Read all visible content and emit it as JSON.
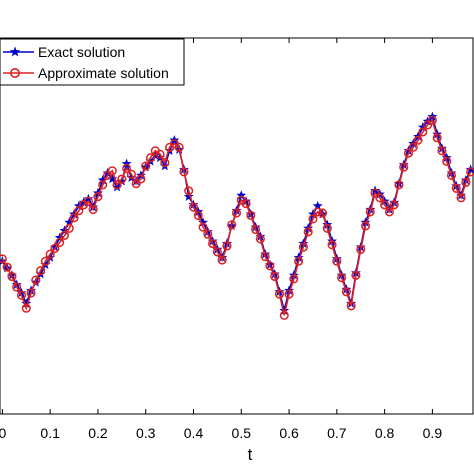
{
  "chart_data": {
    "type": "line",
    "xlabel": "t",
    "ylabel": "",
    "title": "",
    "xlim": [
      -0.005,
      0.985
    ],
    "ylim": [
      -1.0,
      2.2
    ],
    "xticks": [
      0.0,
      0.1,
      0.2,
      0.3,
      0.4,
      0.5,
      0.6,
      0.7,
      0.8,
      0.9
    ],
    "xtick_labels": [
      "0",
      "0.1",
      "0.2",
      "0.3",
      "0.4",
      "0.5",
      "0.6",
      "0.7",
      "0.8",
      "0.9"
    ],
    "grid": false,
    "legend_position": "top-left",
    "x": [
      0.0,
      0.01,
      0.02,
      0.03,
      0.04,
      0.05,
      0.06,
      0.07,
      0.08,
      0.09,
      0.1,
      0.11,
      0.12,
      0.13,
      0.14,
      0.15,
      0.16,
      0.17,
      0.18,
      0.19,
      0.2,
      0.21,
      0.22,
      0.23,
      0.24,
      0.25,
      0.26,
      0.27,
      0.28,
      0.29,
      0.3,
      0.31,
      0.32,
      0.33,
      0.34,
      0.35,
      0.36,
      0.37,
      0.38,
      0.39,
      0.4,
      0.41,
      0.42,
      0.43,
      0.44,
      0.45,
      0.46,
      0.47,
      0.48,
      0.49,
      0.5,
      0.51,
      0.52,
      0.53,
      0.54,
      0.55,
      0.56,
      0.57,
      0.58,
      0.59,
      0.6,
      0.61,
      0.62,
      0.63,
      0.64,
      0.65,
      0.66,
      0.67,
      0.68,
      0.69,
      0.7,
      0.71,
      0.72,
      0.73,
      0.74,
      0.75,
      0.76,
      0.77,
      0.78,
      0.79,
      0.8,
      0.81,
      0.82,
      0.83,
      0.84,
      0.85,
      0.86,
      0.87,
      0.88,
      0.89,
      0.9,
      0.91,
      0.92,
      0.93,
      0.94,
      0.95,
      0.96,
      0.97,
      0.98
    ],
    "series": [
      {
        "name": "Exact solution",
        "color": "#0000cc",
        "marker": "star",
        "values": [
          0.3,
          0.24,
          0.18,
          0.1,
          0.03,
          -0.06,
          0.05,
          0.12,
          0.19,
          0.27,
          0.33,
          0.42,
          0.5,
          0.56,
          0.63,
          0.7,
          0.77,
          0.8,
          0.83,
          0.76,
          0.88,
          0.99,
          1.05,
          1.0,
          0.93,
          0.98,
          1.13,
          1.01,
          0.98,
          1.03,
          1.1,
          1.15,
          1.2,
          1.18,
          1.11,
          1.24,
          1.33,
          1.25,
          1.08,
          0.85,
          0.78,
          0.72,
          0.63,
          0.55,
          0.47,
          0.4,
          0.33,
          0.45,
          0.6,
          0.73,
          0.86,
          0.81,
          0.7,
          0.59,
          0.51,
          0.36,
          0.27,
          0.19,
          0.04,
          -0.12,
          0.05,
          0.18,
          0.33,
          0.45,
          0.58,
          0.7,
          0.77,
          0.7,
          0.61,
          0.47,
          0.32,
          0.18,
          0.06,
          -0.06,
          0.2,
          0.42,
          0.63,
          0.74,
          0.9,
          0.87,
          0.81,
          0.74,
          0.8,
          0.96,
          1.12,
          1.24,
          1.3,
          1.36,
          1.44,
          1.49,
          1.53,
          1.38,
          1.26,
          1.18,
          1.05,
          0.94,
          0.86,
          0.99,
          1.08
        ]
      },
      {
        "name": "Approximate solution",
        "color": "#dd2222",
        "marker": "circle",
        "values": [
          0.32,
          0.25,
          0.17,
          0.08,
          0.01,
          -0.1,
          0.03,
          0.14,
          0.22,
          0.3,
          0.36,
          0.41,
          0.46,
          0.52,
          0.58,
          0.67,
          0.73,
          0.78,
          0.81,
          0.74,
          0.85,
          0.95,
          1.03,
          1.07,
          0.95,
          1.0,
          1.09,
          1.04,
          0.96,
          1.0,
          1.11,
          1.18,
          1.24,
          1.21,
          1.14,
          1.27,
          1.3,
          1.27,
          1.06,
          0.9,
          0.76,
          0.69,
          0.59,
          0.53,
          0.45,
          0.38,
          0.31,
          0.43,
          0.61,
          0.71,
          0.82,
          0.79,
          0.69,
          0.57,
          0.49,
          0.34,
          0.26,
          0.17,
          0.02,
          -0.16,
          0.02,
          0.15,
          0.3,
          0.42,
          0.55,
          0.66,
          0.72,
          0.71,
          0.58,
          0.44,
          0.3,
          0.16,
          0.04,
          -0.08,
          0.18,
          0.4,
          0.6,
          0.72,
          0.88,
          0.84,
          0.78,
          0.72,
          0.78,
          0.95,
          1.1,
          1.22,
          1.27,
          1.33,
          1.4,
          1.46,
          1.5,
          1.35,
          1.24,
          1.15,
          1.03,
          0.92,
          0.84,
          0.97,
          1.06
        ]
      }
    ]
  }
}
